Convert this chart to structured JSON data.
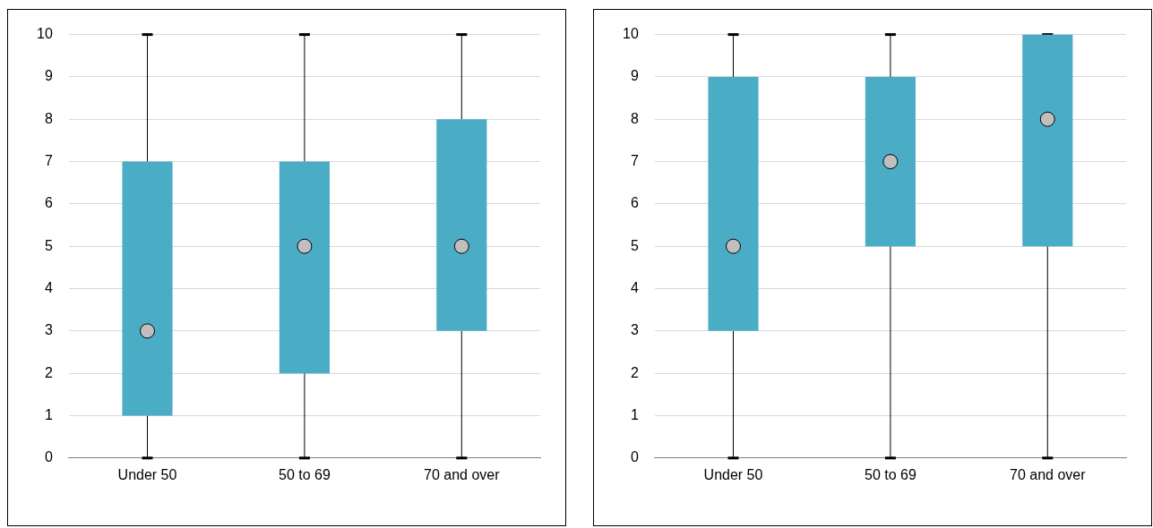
{
  "chart_data": [
    {
      "type": "box",
      "categories": [
        "Under 50",
        "50 to 69",
        "70 and over"
      ],
      "color": "#4bacc6",
      "marker": "circle",
      "grid": "y",
      "legend": false,
      "ylim": [
        0,
        10
      ],
      "yticks": [
        0,
        1,
        2,
        3,
        4,
        5,
        6,
        7,
        8,
        9,
        10
      ],
      "boxes": [
        {
          "low": 0,
          "q1": 1,
          "median": 3,
          "q3": 7,
          "high": 10
        },
        {
          "low": 0,
          "q1": 2,
          "median": 5,
          "q3": 7,
          "high": 10
        },
        {
          "low": 0,
          "q1": 3,
          "median": 5,
          "q3": 8,
          "high": 10
        }
      ]
    },
    {
      "type": "box",
      "categories": [
        "Under 50",
        "50 to 69",
        "70 and over"
      ],
      "color": "#4bacc6",
      "marker": "circle",
      "grid": "y",
      "legend": false,
      "ylim": [
        0,
        10
      ],
      "yticks": [
        0,
        1,
        2,
        3,
        4,
        5,
        6,
        7,
        8,
        9,
        10
      ],
      "boxes": [
        {
          "low": 0,
          "q1": 3,
          "median": 5,
          "q3": 9,
          "high": 10
        },
        {
          "low": 0,
          "q1": 5,
          "median": 7,
          "q3": 9,
          "high": 10
        },
        {
          "low": 0,
          "q1": 5,
          "median": 8,
          "q3": 10,
          "high": 10
        }
      ]
    }
  ]
}
